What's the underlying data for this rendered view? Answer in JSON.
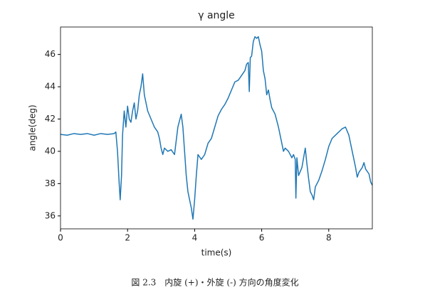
{
  "chart_data": {
    "type": "line",
    "title": "γ angle",
    "xlabel": "time(s)",
    "ylabel": "angle(deg)",
    "x": [
      0,
      0.2,
      0.4,
      0.6,
      0.8,
      1.0,
      1.2,
      1.4,
      1.6,
      1.65,
      1.7,
      1.75,
      1.78,
      1.82,
      1.85,
      1.9,
      1.95,
      2.0,
      2.05,
      2.1,
      2.15,
      2.2,
      2.25,
      2.3,
      2.35,
      2.4,
      2.45,
      2.5,
      2.55,
      2.6,
      2.7,
      2.8,
      2.9,
      2.95,
      3.0,
      3.05,
      3.1,
      3.2,
      3.3,
      3.4,
      3.5,
      3.6,
      3.65,
      3.7,
      3.75,
      3.8,
      3.85,
      3.9,
      3.95,
      4.0,
      4.05,
      4.1,
      4.2,
      4.3,
      4.4,
      4.5,
      4.6,
      4.7,
      4.8,
      4.9,
      5.0,
      5.1,
      5.2,
      5.3,
      5.4,
      5.5,
      5.55,
      5.6,
      5.63,
      5.66,
      5.7,
      5.75,
      5.8,
      5.85,
      5.9,
      5.95,
      6.0,
      6.05,
      6.1,
      6.15,
      6.2,
      6.25,
      6.3,
      6.4,
      6.5,
      6.6,
      6.65,
      6.7,
      6.8,
      6.9,
      6.95,
      7.0,
      7.02,
      7.05,
      7.1,
      7.2,
      7.3,
      7.35,
      7.4,
      7.45,
      7.5,
      7.55,
      7.6,
      7.7,
      7.8,
      7.9,
      8.0,
      8.1,
      8.2,
      8.3,
      8.4,
      8.5,
      8.6,
      8.7,
      8.8,
      8.85,
      8.9,
      9.0,
      9.05,
      9.1,
      9.2,
      9.25,
      9.3
    ],
    "values": [
      41.05,
      41.0,
      41.1,
      41.05,
      41.1,
      41.0,
      41.1,
      41.05,
      41.1,
      41.2,
      40.0,
      38.0,
      37.0,
      38.5,
      41.0,
      42.5,
      41.5,
      42.8,
      42.0,
      41.8,
      42.5,
      43.0,
      42.0,
      42.5,
      43.5,
      44.0,
      44.8,
      43.5,
      43.0,
      42.5,
      42.0,
      41.5,
      41.2,
      40.8,
      40.2,
      39.8,
      40.2,
      40.0,
      40.1,
      39.8,
      41.5,
      42.3,
      41.5,
      40.0,
      38.5,
      37.5,
      37.0,
      36.5,
      35.8,
      37.0,
      38.5,
      39.8,
      39.5,
      39.8,
      40.5,
      40.8,
      41.5,
      42.2,
      42.6,
      42.9,
      43.3,
      43.8,
      44.3,
      44.4,
      44.7,
      45.0,
      45.4,
      45.5,
      43.7,
      45.8,
      45.9,
      46.8,
      47.1,
      47.0,
      47.1,
      46.6,
      46.2,
      45.0,
      44.5,
      43.5,
      43.8,
      43.2,
      42.7,
      42.3,
      41.5,
      40.5,
      40.0,
      40.2,
      40.0,
      39.6,
      39.8,
      39.5,
      37.1,
      39.6,
      38.5,
      39.0,
      40.2,
      39.2,
      38.3,
      37.5,
      37.3,
      37.0,
      37.8,
      38.2,
      38.8,
      39.5,
      40.3,
      40.8,
      41.0,
      41.2,
      41.4,
      41.5,
      41.0,
      40.0,
      39.0,
      38.4,
      38.7,
      39.0,
      39.3,
      38.9,
      38.6,
      38.1,
      37.9
    ],
    "color": "#1f77b4",
    "xlim": [
      0,
      9.3
    ],
    "ylim": [
      35.2,
      47.7
    ],
    "xticks": [
      0,
      2,
      4,
      6,
      8
    ],
    "yticks": [
      36,
      38,
      40,
      42,
      44,
      46
    ]
  },
  "caption": "図 2.3　内旋 (+)・外旋 (-) 方向の角度変化"
}
